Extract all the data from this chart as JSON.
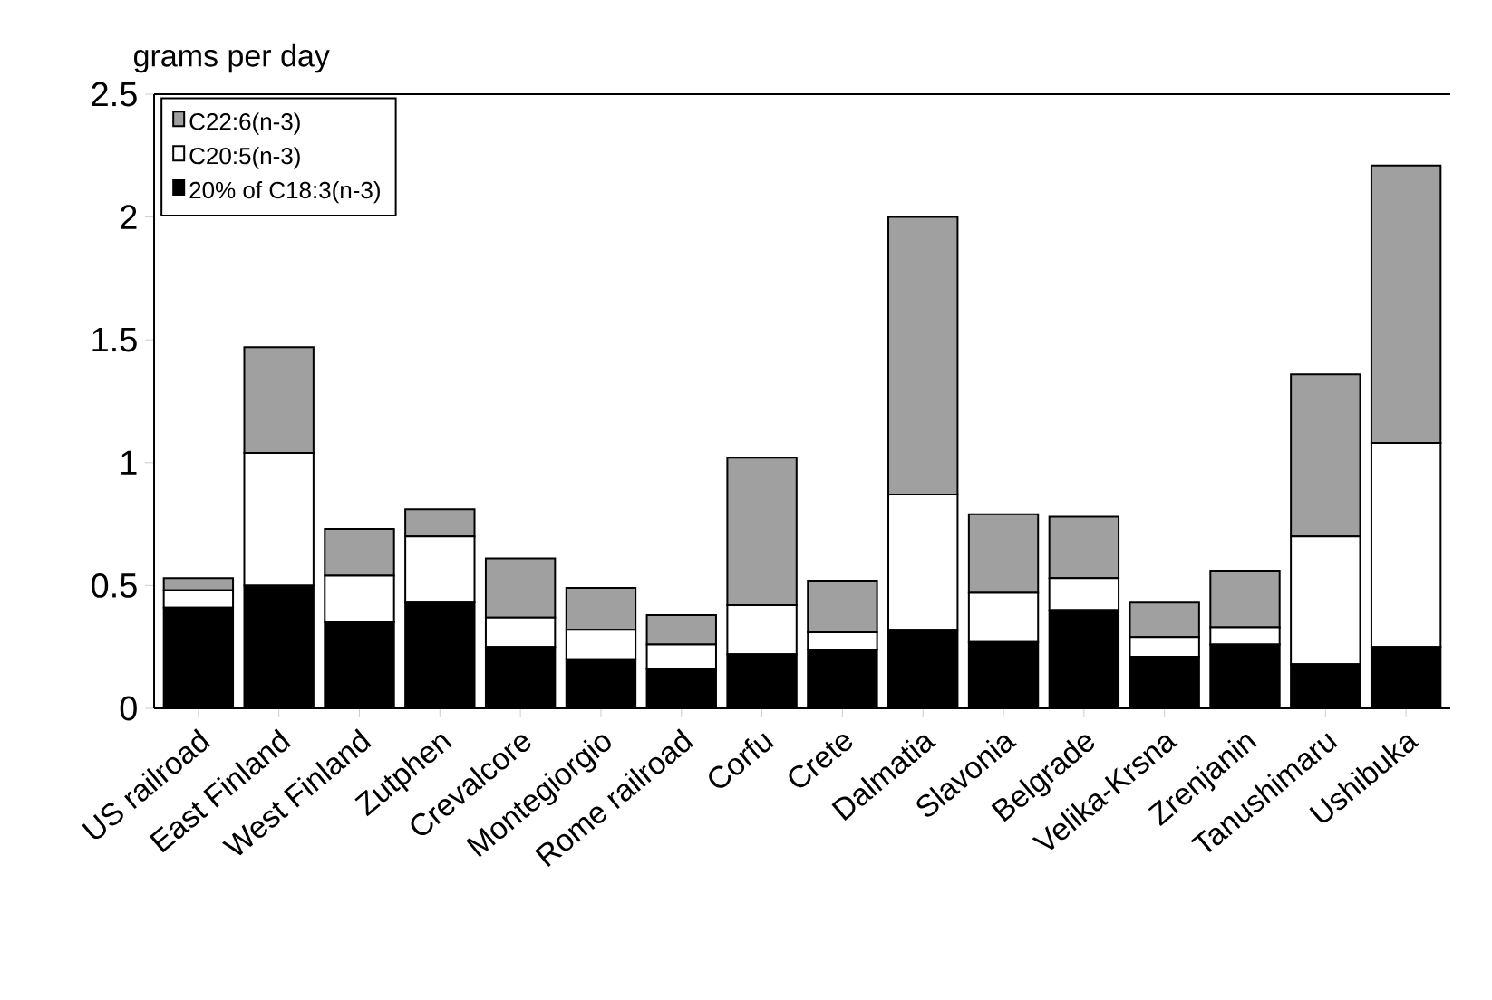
{
  "chart_data": {
    "type": "bar",
    "stacked": true,
    "ylabel": "grams per day",
    "categories": [
      "US railroad",
      "East Finland",
      "West Finland",
      "Zutphen",
      "Crevalcore",
      "Montegiorgio",
      "Rome railroad",
      "Corfu",
      "Crete",
      "Dalmatia",
      "Slavonia",
      "Belgrade",
      "Velika-Krsna",
      "Zrenjanin",
      "Tanushimaru",
      "Ushibuka"
    ],
    "series": [
      {
        "name": "20% of C18:3(n-3)",
        "color": "#000000",
        "values": [
          0.41,
          0.5,
          0.35,
          0.43,
          0.25,
          0.2,
          0.16,
          0.22,
          0.24,
          0.32,
          0.27,
          0.4,
          0.21,
          0.26,
          0.18,
          0.25
        ]
      },
      {
        "name": "C20:5(n-3)",
        "color": "#ffffff",
        "values": [
          0.07,
          0.54,
          0.19,
          0.27,
          0.12,
          0.12,
          0.1,
          0.2,
          0.07,
          0.55,
          0.2,
          0.13,
          0.08,
          0.07,
          0.52,
          0.83
        ]
      },
      {
        "name": "C22:6(n-3)",
        "color": "#a0a0a0",
        "values": [
          0.05,
          0.43,
          0.19,
          0.11,
          0.24,
          0.17,
          0.12,
          0.6,
          0.21,
          1.13,
          0.32,
          0.25,
          0.14,
          0.23,
          0.66,
          1.13
        ]
      }
    ],
    "ylim": [
      0,
      2.5
    ],
    "yticks": [
      0,
      0.5,
      1,
      1.5,
      2,
      2.5
    ],
    "grid": false,
    "legend": "top left"
  }
}
